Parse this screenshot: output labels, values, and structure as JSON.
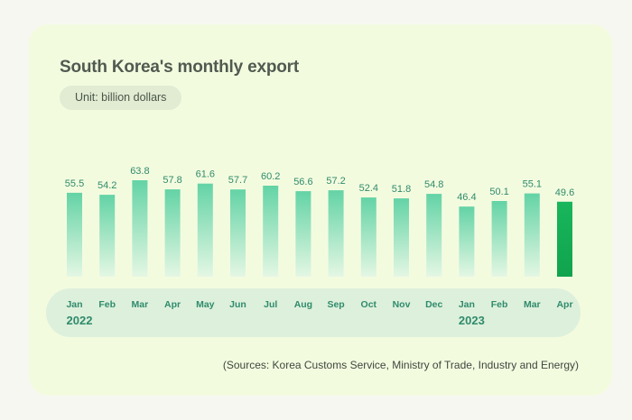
{
  "title": "South Korea's monthly export",
  "unit": "Unit: billion dollars",
  "source": "(Sources: Korea Customs Service, Ministry of Trade, Industry and Energy)",
  "colors": {
    "bar_top": "#63d3a5",
    "bar_bottom": "#e4f7e4",
    "highlight_top": "#18b65c",
    "highlight_bottom": "#11a34e",
    "label": "#2f8b6b",
    "year": "#2f8b6b"
  },
  "chart_data": {
    "type": "bar",
    "title": "South Korea's monthly export",
    "ylabel": "Unit: billion dollars",
    "categories": [
      "Jan",
      "Feb",
      "Mar",
      "Apr",
      "May",
      "Jun",
      "Jul",
      "Aug",
      "Sep",
      "Oct",
      "Nov",
      "Dec",
      "Jan",
      "Feb",
      "Mar",
      "Apr"
    ],
    "years": [
      {
        "label": "2022",
        "start_index": 0
      },
      {
        "label": "2023",
        "start_index": 12
      }
    ],
    "values": [
      55.5,
      54.2,
      63.8,
      57.8,
      61.6,
      57.7,
      60.2,
      56.6,
      57.2,
      52.4,
      51.8,
      54.8,
      46.4,
      50.1,
      55.1,
      49.6
    ],
    "highlight_index": 15,
    "grid": false,
    "legend": "none"
  }
}
